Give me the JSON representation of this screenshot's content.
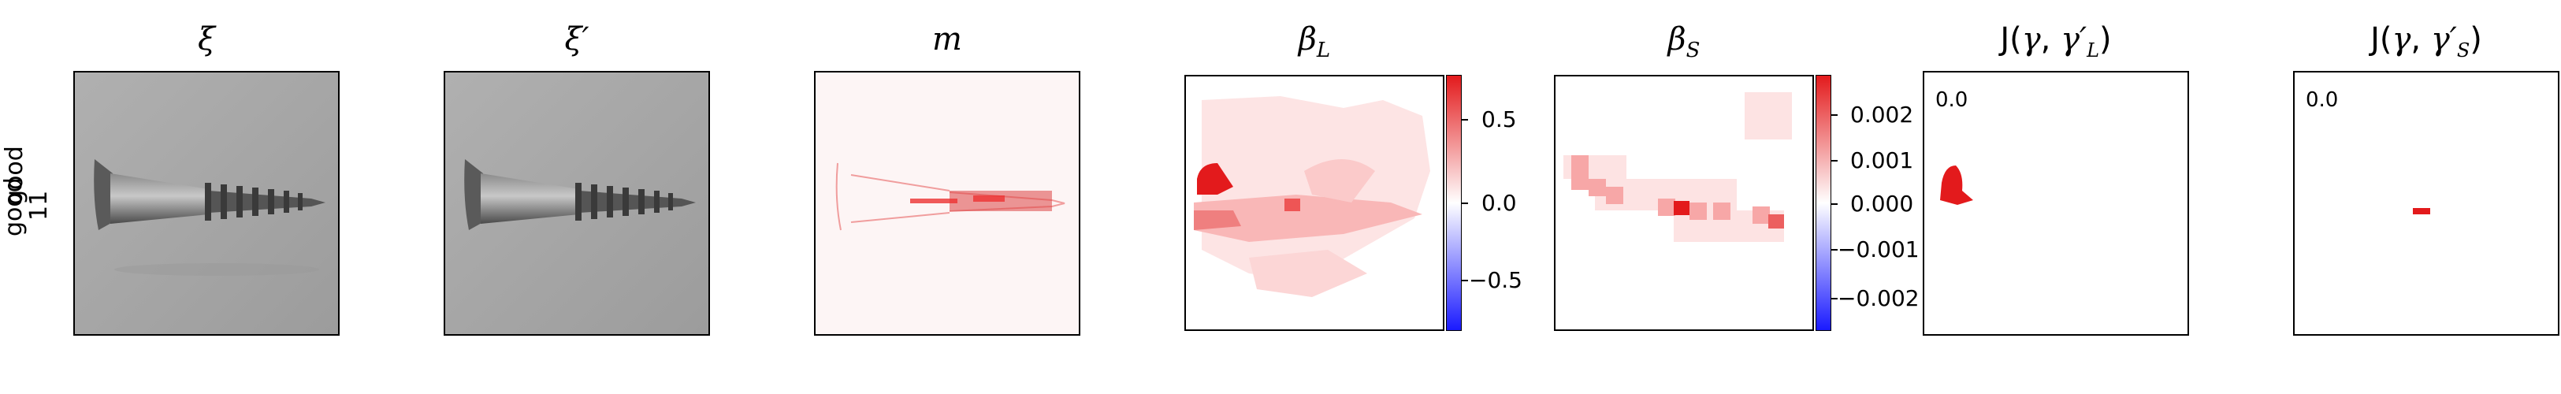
{
  "row_label": "good\n11",
  "row_label_line1": "good",
  "row_label_line2": "11",
  "titles": {
    "p1": "ξ",
    "p2": "ξ′",
    "p3": "m",
    "p4": "β_L",
    "p5": "β_S",
    "p6": "J(γ, γ′_L)",
    "p7": "J(γ, γ′_S)"
  },
  "cbar_L": {
    "ticks": [
      "0.5",
      "0.0",
      "−0.5"
    ]
  },
  "cbar_S": {
    "ticks": [
      "0.002",
      "0.001",
      "0.000",
      "−0.001",
      "−0.002"
    ]
  },
  "j_values": {
    "L": "0.0",
    "S": "0.0"
  },
  "colors": {
    "red": "#e31a1c",
    "blue": "#1a1aff",
    "gray_bg": "#a6a6a6"
  }
}
